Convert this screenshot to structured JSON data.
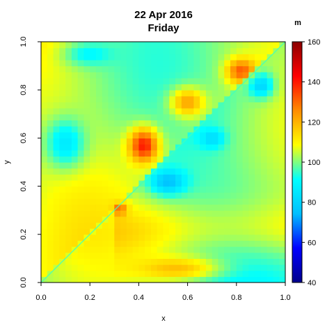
{
  "chart_data": {
    "type": "heatmap",
    "title": "22 Apr 2016",
    "subtitle": "Friday",
    "xlabel": "x",
    "ylabel": "y",
    "xlim": [
      0,
      1
    ],
    "ylim": [
      0,
      1
    ],
    "x_ticks": [
      "0.0",
      "0.2",
      "0.4",
      "0.6",
      "0.8",
      "1.0"
    ],
    "y_ticks": [
      "0.0",
      "0.2",
      "0.4",
      "0.6",
      "0.8",
      "1.0"
    ],
    "colorbar": {
      "title": "m",
      "min": 40,
      "max": 160,
      "ticks": [
        "40",
        "60",
        "80",
        "100",
        "120",
        "140",
        "160"
      ],
      "colors": [
        "#00008b",
        "#0000ff",
        "#00bfff",
        "#00ffff",
        "#ffff00",
        "#ff8c00",
        "#ff0000",
        "#8b0000"
      ]
    },
    "regions": [
      {
        "label": "upper-left triangle background",
        "value": 104
      },
      {
        "label": "lower-right triangle background",
        "value": 98
      },
      {
        "label": "hotspot near (0.42, 0.57)",
        "value": 140
      },
      {
        "label": "coldspot near (0.52, 0.42)",
        "value": 75
      },
      {
        "label": "hotspot near (0.82, 0.88)",
        "value": 132
      },
      {
        "label": "coldspot near (0.9, 0.82)",
        "value": 80
      },
      {
        "label": "lower band near y=0.05",
        "value": 118
      }
    ]
  }
}
